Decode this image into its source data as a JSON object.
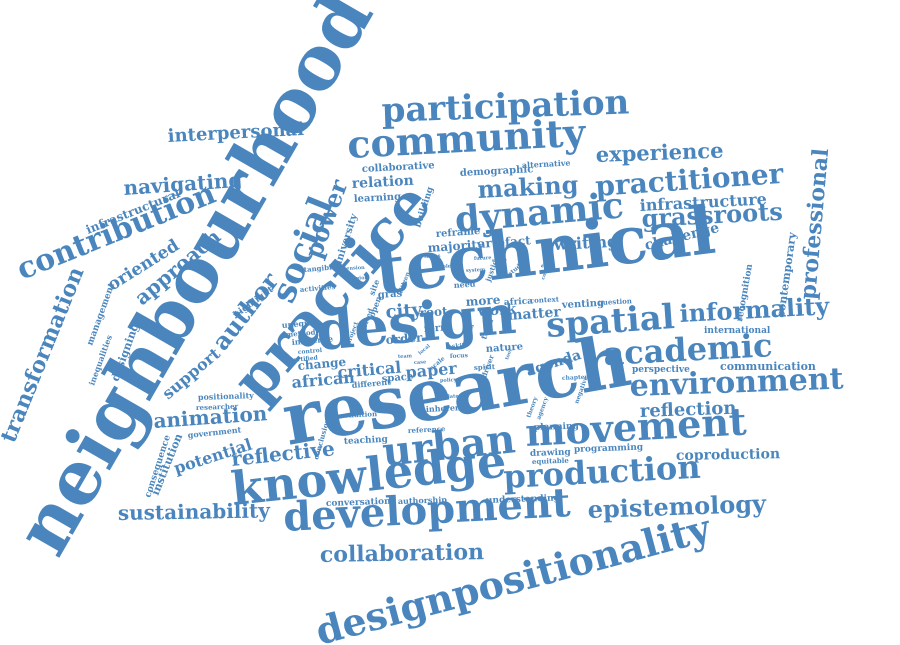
{
  "colors": {
    "word": "#4a86bd",
    "background": "#ffffff"
  },
  "words": {
    "neighbourhood": "neighbourhood",
    "technical": "technical",
    "research": "research",
    "practice": "practice",
    "design": "design",
    "knowledge": "knowledge",
    "development": "development",
    "designpositionality": "designpositionality",
    "participation": "participation",
    "community": "community",
    "experience": "experience",
    "practitioner": "practitioner",
    "dynamic": "dynamic",
    "making": "making",
    "grassroots": "grassroots",
    "infrastructure": "infrastructure",
    "professional": "professional",
    "contribution": "contribution",
    "navigating": "navigating",
    "interpersonal": "interpersonal",
    "social": "social",
    "power": "power",
    "approach": "approach",
    "oriented": "oriented",
    "transformation": "transformation",
    "infrastructural": "infrastructural",
    "author": "author",
    "support": "support",
    "spatial": "spatial",
    "informality": "informality",
    "academic": "academic",
    "environment": "environment",
    "movement": "movement",
    "reflection": "reflection",
    "urban": "urban",
    "production": "production",
    "epistemology": "epistemology",
    "sustainability": "sustainability",
    "collaboration": "collaboration",
    "animation": "animation",
    "reflective": "reflective",
    "potential": "potential",
    "coproduction": "coproduction",
    "communication": "communication",
    "perspective": "perspective",
    "international": "international",
    "recognition": "recognition",
    "contemporary": "contemporary",
    "challenge": "challenge",
    "writing": "writing",
    "majority": "majority",
    "artefact": "artefact",
    "reframe": "reframe",
    "relation": "relation",
    "learning": "learning",
    "collaborative": "collaborative",
    "demographic": "demographic",
    "alternative": "alternative",
    "building": "building",
    "university": "university",
    "city": "city",
    "root": "root",
    "work": "work",
    "more": "more",
    "matter": "matter",
    "africa": "africa",
    "context": "context",
    "critical": "critical",
    "paper": "paper",
    "african": "african",
    "change": "change",
    "space": "space",
    "different": "different",
    "order": "order",
    "nature": "nature",
    "agenda": "agenda",
    "venting": "venting",
    "question": "question",
    "gras": "gras",
    "form": "form",
    "highlight": "highlight",
    "tangible": "tangible",
    "activities": "activities",
    "designing": "designing",
    "management": "management",
    "inequalities": "inequalities",
    "unequal": "unequal",
    "method": "method",
    "influence": "influence",
    "control": "control",
    "certified": "certified",
    "positionality": "positionality",
    "researcher": "researcher",
    "government": "government",
    "institution": "institution",
    "consequence": "consequence",
    "conclusion": "conclusion",
    "condition": "condition",
    "teaching": "teaching",
    "reference": "reference",
    "inherent": "inherent",
    "conversation": "conversation",
    "authorship": "authorship",
    "understanding": "understanding",
    "planning": "planning",
    "drawing": "drawing",
    "equitable": "equitable",
    "programming": "programming",
    "driver": "driver",
    "spirit": "spirit",
    "theory": "theory",
    "agency": "agency",
    "chapter": "chapter",
    "future": "future",
    "justice": "justice",
    "need": "need",
    "term": "term",
    "focus": "focus",
    "skill": "skill",
    "scale": "scale",
    "site": "site",
    "project": "project",
    "involved": "involved",
    "open": "open",
    "series": "series",
    "citizen": "citizen",
    "policy": "policy",
    "latest": "latest",
    "local": "local",
    "tension": "tension",
    "role": "role",
    "system": "system",
    "stake": "stake",
    "idea": "idea",
    "concept": "concept",
    "region": "region",
    "study": "study",
    "event": "event",
    "team": "team",
    "case": "case",
    "negative": "negative",
    "tool": "tool"
  }
}
